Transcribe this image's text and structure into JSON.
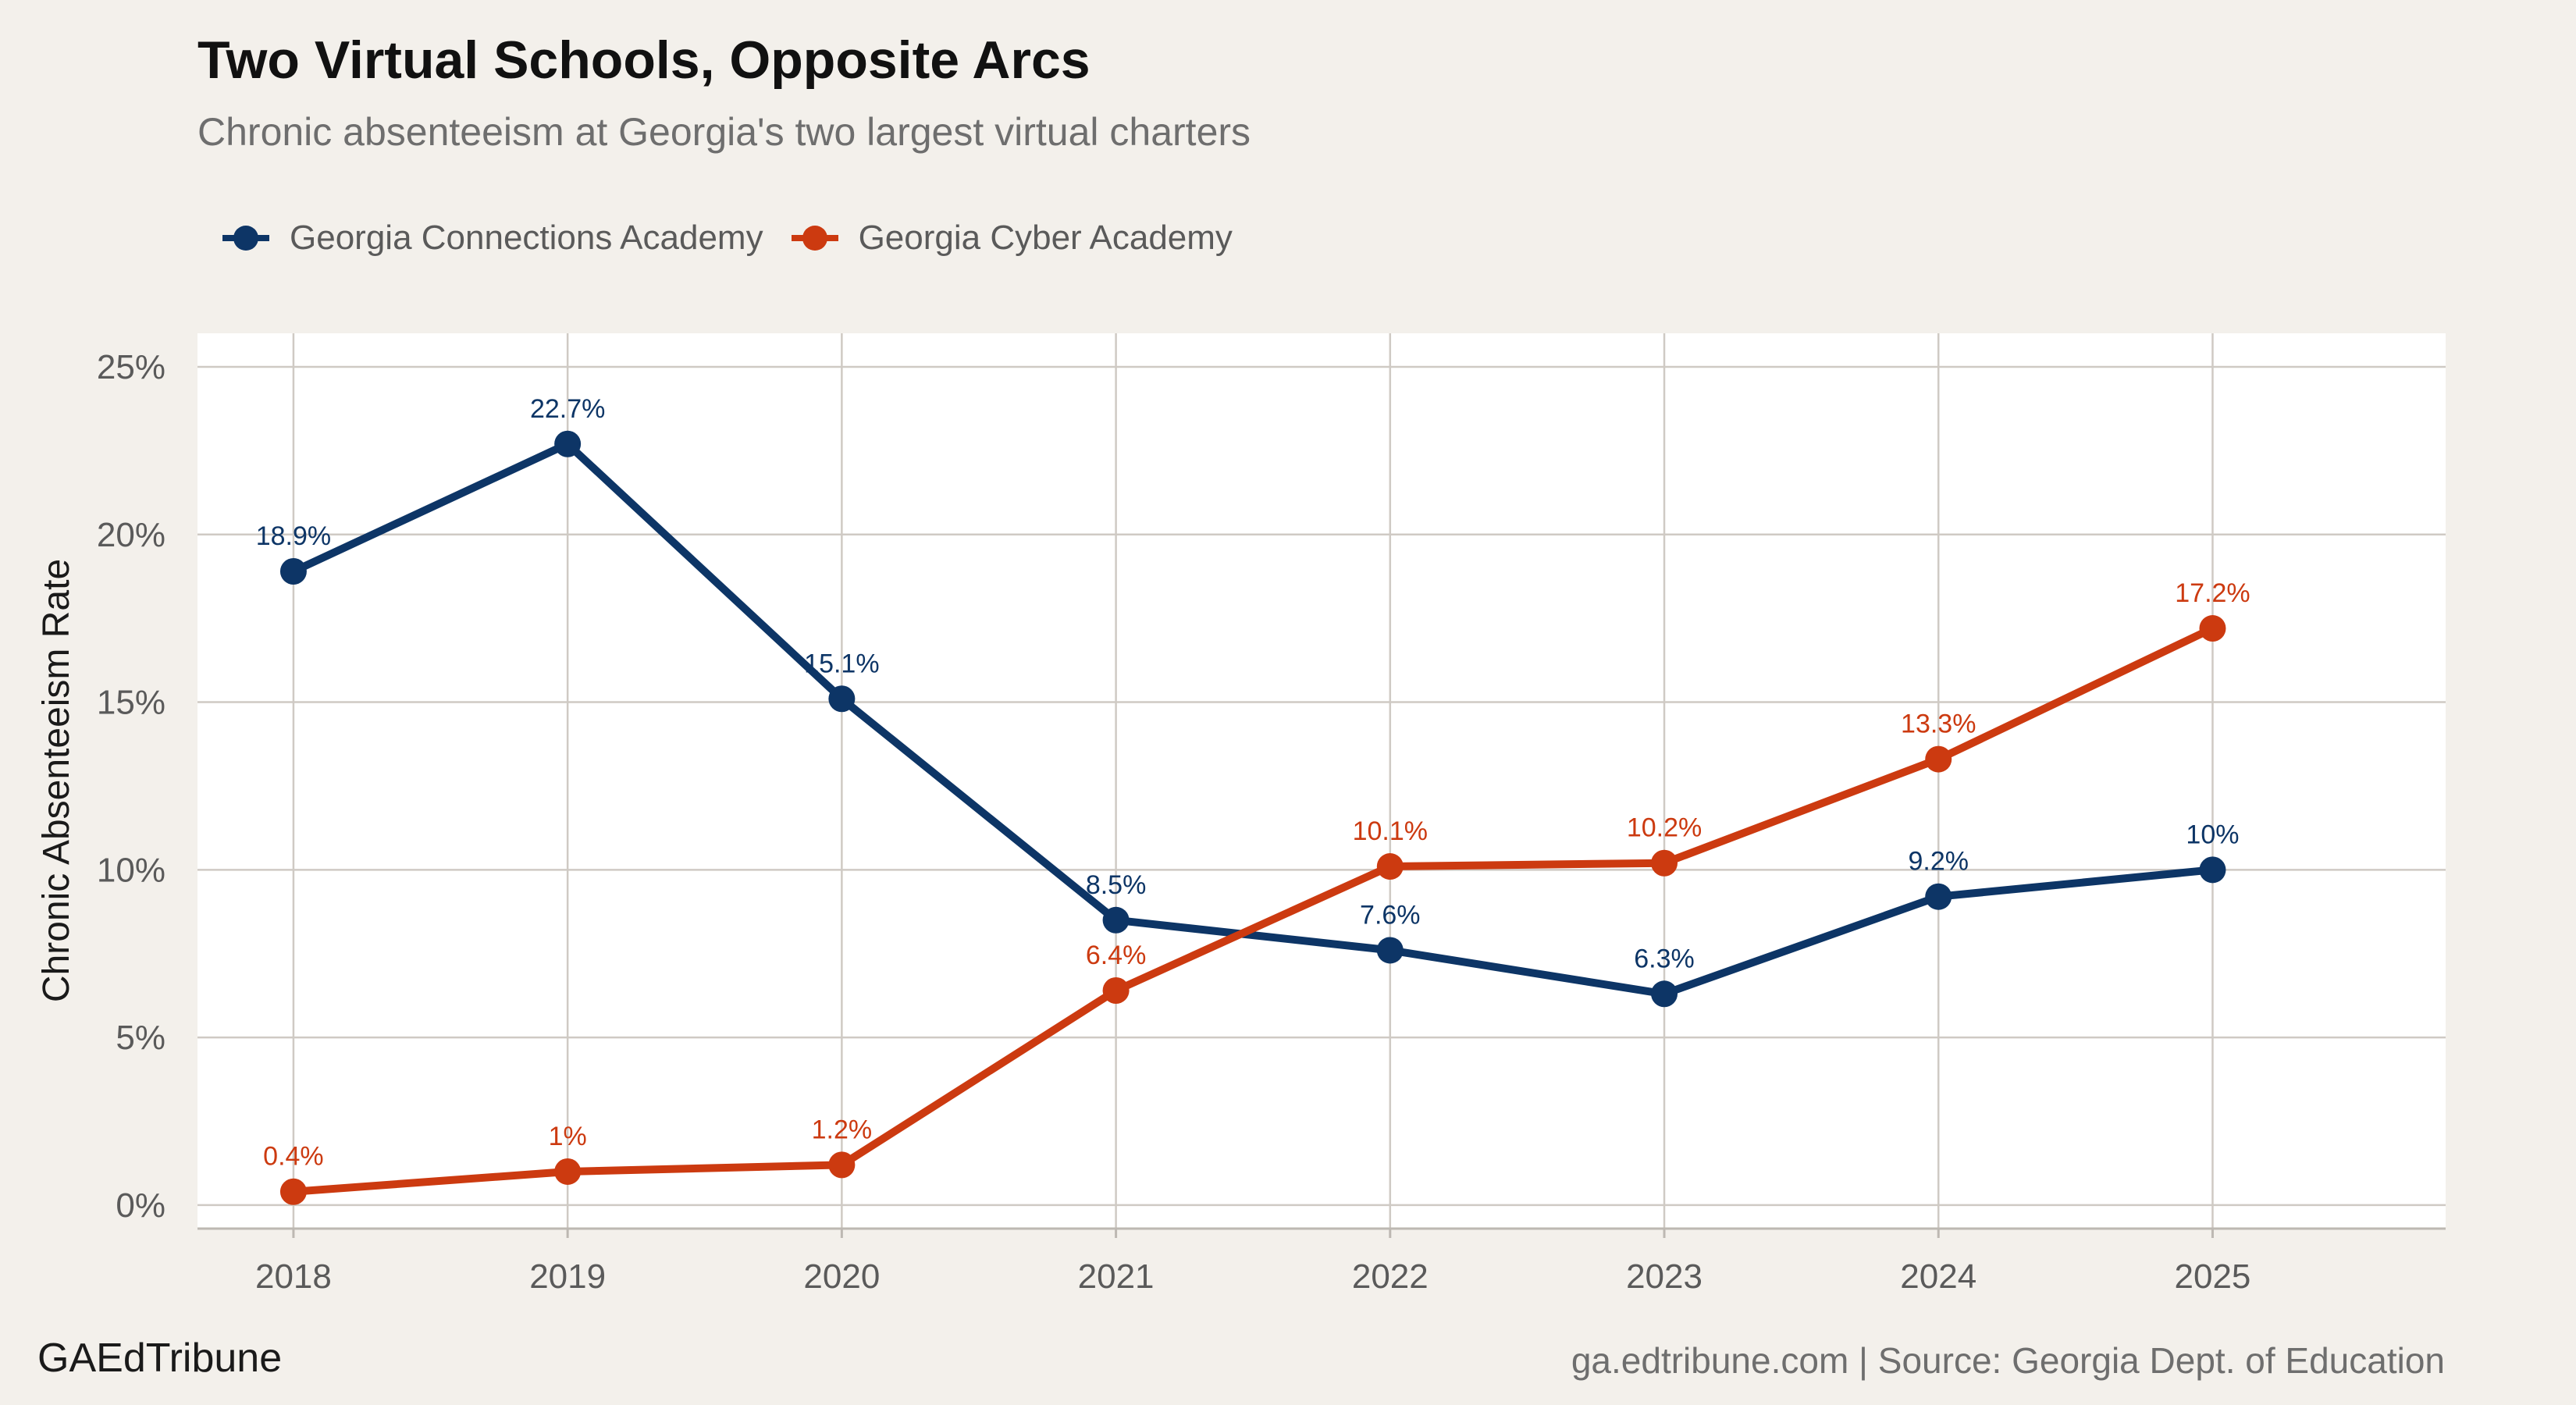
{
  "title": "Two Virtual Schools, Opposite Arcs",
  "subtitle": "Chronic absenteeism at Georgia's two largest virtual charters",
  "brand": "GAEdTribune",
  "source": "ga.edtribune.com | Source: Georgia Dept. of Education",
  "colors": {
    "background": "#f3f0eb",
    "panel": "#ffffff",
    "grid": "#cfcac4",
    "connections": "#0d3566",
    "cyber": "#cc3a10"
  },
  "chart_data": {
    "type": "line",
    "title": "Two Virtual Schools, Opposite Arcs",
    "subtitle": "Chronic absenteeism at Georgia's two largest virtual charters",
    "xlabel": "",
    "ylabel": "Chronic Absenteeism Rate",
    "x": [
      2018,
      2019,
      2020,
      2021,
      2022,
      2023,
      2024,
      2025
    ],
    "x_tick_labels": [
      "2018",
      "2019",
      "2020",
      "2021",
      "2022",
      "2023",
      "2024",
      "2025"
    ],
    "xlim": [
      2017.65,
      2025.85
    ],
    "ylim": [
      -0.7,
      26
    ],
    "y_ticks": [
      0,
      5,
      10,
      15,
      20,
      25
    ],
    "y_tick_labels": [
      "0%",
      "5%",
      "10%",
      "15%",
      "20%",
      "25%"
    ],
    "grid": true,
    "legend_position": "top-left",
    "series": [
      {
        "name": "Georgia Connections Academy",
        "color": "#0d3566",
        "values": [
          18.9,
          22.7,
          15.1,
          8.5,
          7.6,
          6.3,
          9.2,
          10.0
        ],
        "labels": [
          "18.9%",
          "22.7%",
          "15.1%",
          "8.5%",
          "7.6%",
          "6.3%",
          "9.2%",
          "10%"
        ]
      },
      {
        "name": "Georgia Cyber Academy",
        "color": "#cc3a10",
        "values": [
          0.4,
          1.0,
          1.2,
          6.4,
          10.1,
          10.2,
          13.3,
          17.2
        ],
        "labels": [
          "0.4%",
          "1%",
          "1.2%",
          "6.4%",
          "10.1%",
          "10.2%",
          "13.3%",
          "17.2%"
        ]
      }
    ]
  }
}
